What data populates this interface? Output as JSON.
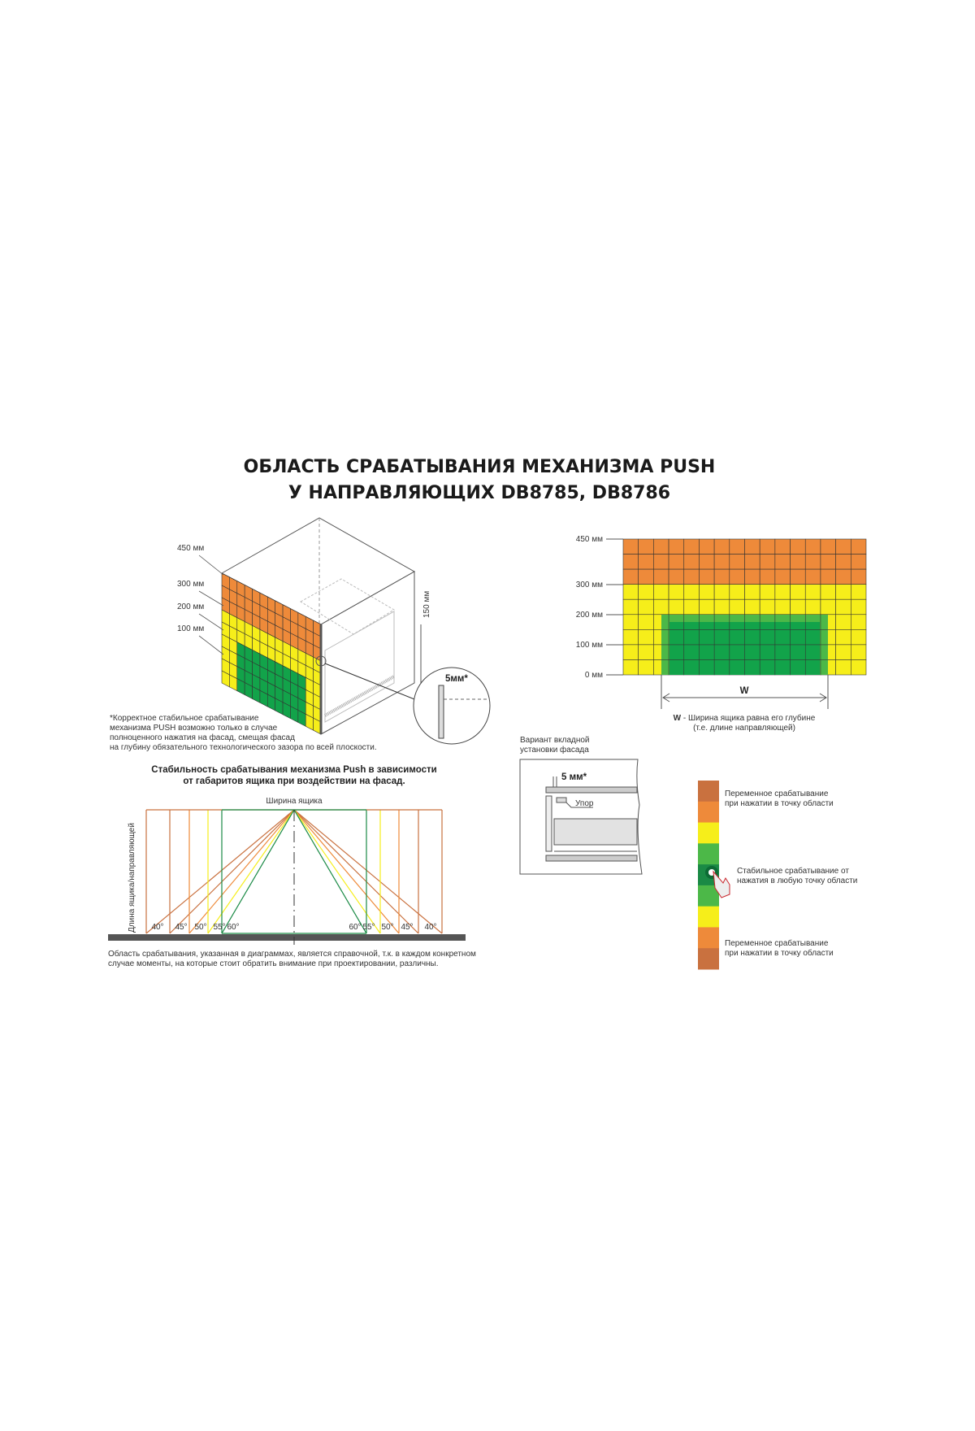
{
  "title": {
    "line1": "ОБЛАСТЬ СРАБАТЫВАНИЯ МЕХАНИЗМА PUSH",
    "line2": "У НАПРАВЛЯЮЩИХ DB8785, DB8786"
  },
  "colors": {
    "orange": "#ee8a3a",
    "yellow": "#f6ee1a",
    "green_light": "#4cb848",
    "green": "#12a34a",
    "green_dark": "#1a8a45",
    "brown": "#c9713f",
    "grid_line": "#333333"
  },
  "cube": {
    "levels": [
      "450 мм",
      "300 мм",
      "200 мм",
      "100 мм"
    ],
    "height_label": "150 мм",
    "gap_label": "5мм*",
    "footnote": [
      "*Корректное стабильное срабатывание",
      "механизма PUSH возможно только в случае",
      "полноценного нажатия на фасад, смещая фасад",
      "на глубину обязательного технологического зазора по всей плоскости."
    ]
  },
  "zone_chart": {
    "y_labels": [
      "450 мм",
      "300 мм",
      "200 мм",
      "100 мм",
      "0 мм"
    ],
    "y_values": [
      450,
      300,
      200,
      100,
      0
    ],
    "w_label": "W",
    "caption_bold": "W",
    "caption": " - Ширина ящика равна его глубине",
    "caption2": "(т.е. длине направляющей)"
  },
  "fan_diagram": {
    "title1": "Стабильность срабатывания механизма Push в зависимости",
    "title2": "от габаритов ящика при воздействии на фасад.",
    "top_label": "Ширина ящика",
    "side_label": "Длина ящика/направляющей",
    "angles": [
      "40°",
      "45°",
      "50°",
      "55°",
      "60°"
    ],
    "caption1": "Область срабатывания, указанная в диаграммах, является справочной, т.к. в каждом конкретном",
    "caption2": "случае моменты, на которые стоит обратить внимание при проектировании, различны."
  },
  "inset": {
    "title1": "Вариант вкладной",
    "title2": "установки фасада",
    "gap_label": "5 мм*",
    "stop_label": "Упор"
  },
  "legend": {
    "variable_top": [
      "Переменное срабатывание",
      "при нажатии в точку области"
    ],
    "stable": [
      "Стабильное срабатывание от",
      "нажатия в любую точку области"
    ],
    "variable_bottom": [
      "Переменное срабатывание",
      "при нажатии в точку области"
    ],
    "icon": "hand-press-icon"
  }
}
